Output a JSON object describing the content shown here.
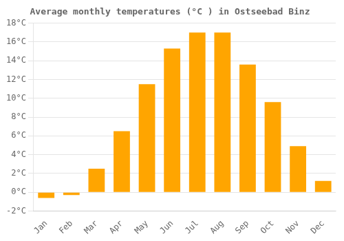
{
  "chart_data": {
    "type": "bar",
    "title": "Average monthly temperatures (°C ) in Ostseebad Binz",
    "categories": [
      "Jan",
      "Feb",
      "Mar",
      "Apr",
      "May",
      "Jun",
      "Jul",
      "Aug",
      "Sep",
      "Oct",
      "Nov",
      "Dec"
    ],
    "values": [
      -0.6,
      -0.3,
      2.5,
      6.5,
      11.5,
      15.3,
      17.0,
      17.0,
      13.6,
      9.6,
      4.9,
      1.2
    ],
    "color": "#FFA500",
    "ylim": [
      -2,
      18
    ],
    "yticks": [
      {
        "value": -2,
        "label": "-2°C"
      },
      {
        "value": 0,
        "label": "0°C"
      },
      {
        "value": 2,
        "label": "2°C"
      },
      {
        "value": 4,
        "label": "4°C"
      },
      {
        "value": 6,
        "label": "6°C"
      },
      {
        "value": 8,
        "label": "8°C"
      },
      {
        "value": 10,
        "label": "10°C"
      },
      {
        "value": 12,
        "label": "12°C"
      },
      {
        "value": 14,
        "label": "14°C"
      },
      {
        "value": 16,
        "label": "16°C"
      },
      {
        "value": 18,
        "label": "18°C"
      }
    ],
    "grid": true
  }
}
